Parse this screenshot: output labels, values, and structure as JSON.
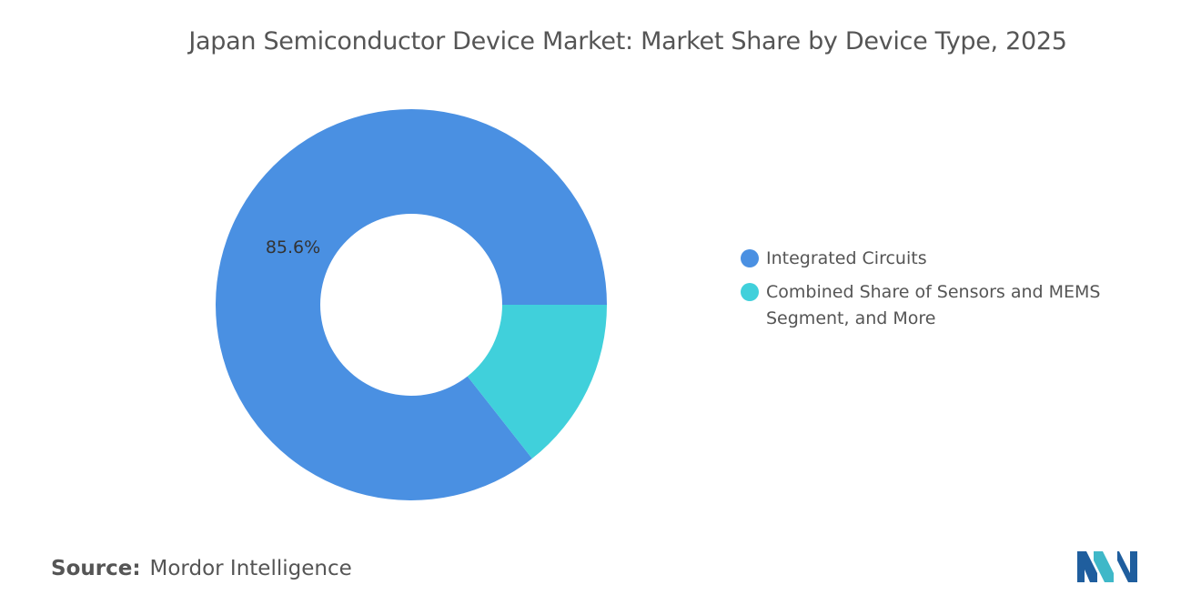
{
  "chart_data": {
    "type": "pie",
    "variant": "donut",
    "title": "Japan Semiconductor Device Market: Market Share by Device Type, 2025",
    "slices": [
      {
        "label": "Integrated Circuits",
        "value": 85.6,
        "color": "#4A90E2",
        "data_label": "85.6%"
      },
      {
        "label": "Combined Share of Sensors and MEMS Segment, and More",
        "value": 14.4,
        "color": "#40D0DB",
        "data_label": ""
      }
    ],
    "legend_position": "right"
  },
  "source": {
    "label": "Source:",
    "value": "Mordor Intelligence"
  },
  "logo": {
    "icon": "mordor-intelligence-logo-icon",
    "colors": [
      "#1F5E9E",
      "#3FB8C8"
    ]
  }
}
